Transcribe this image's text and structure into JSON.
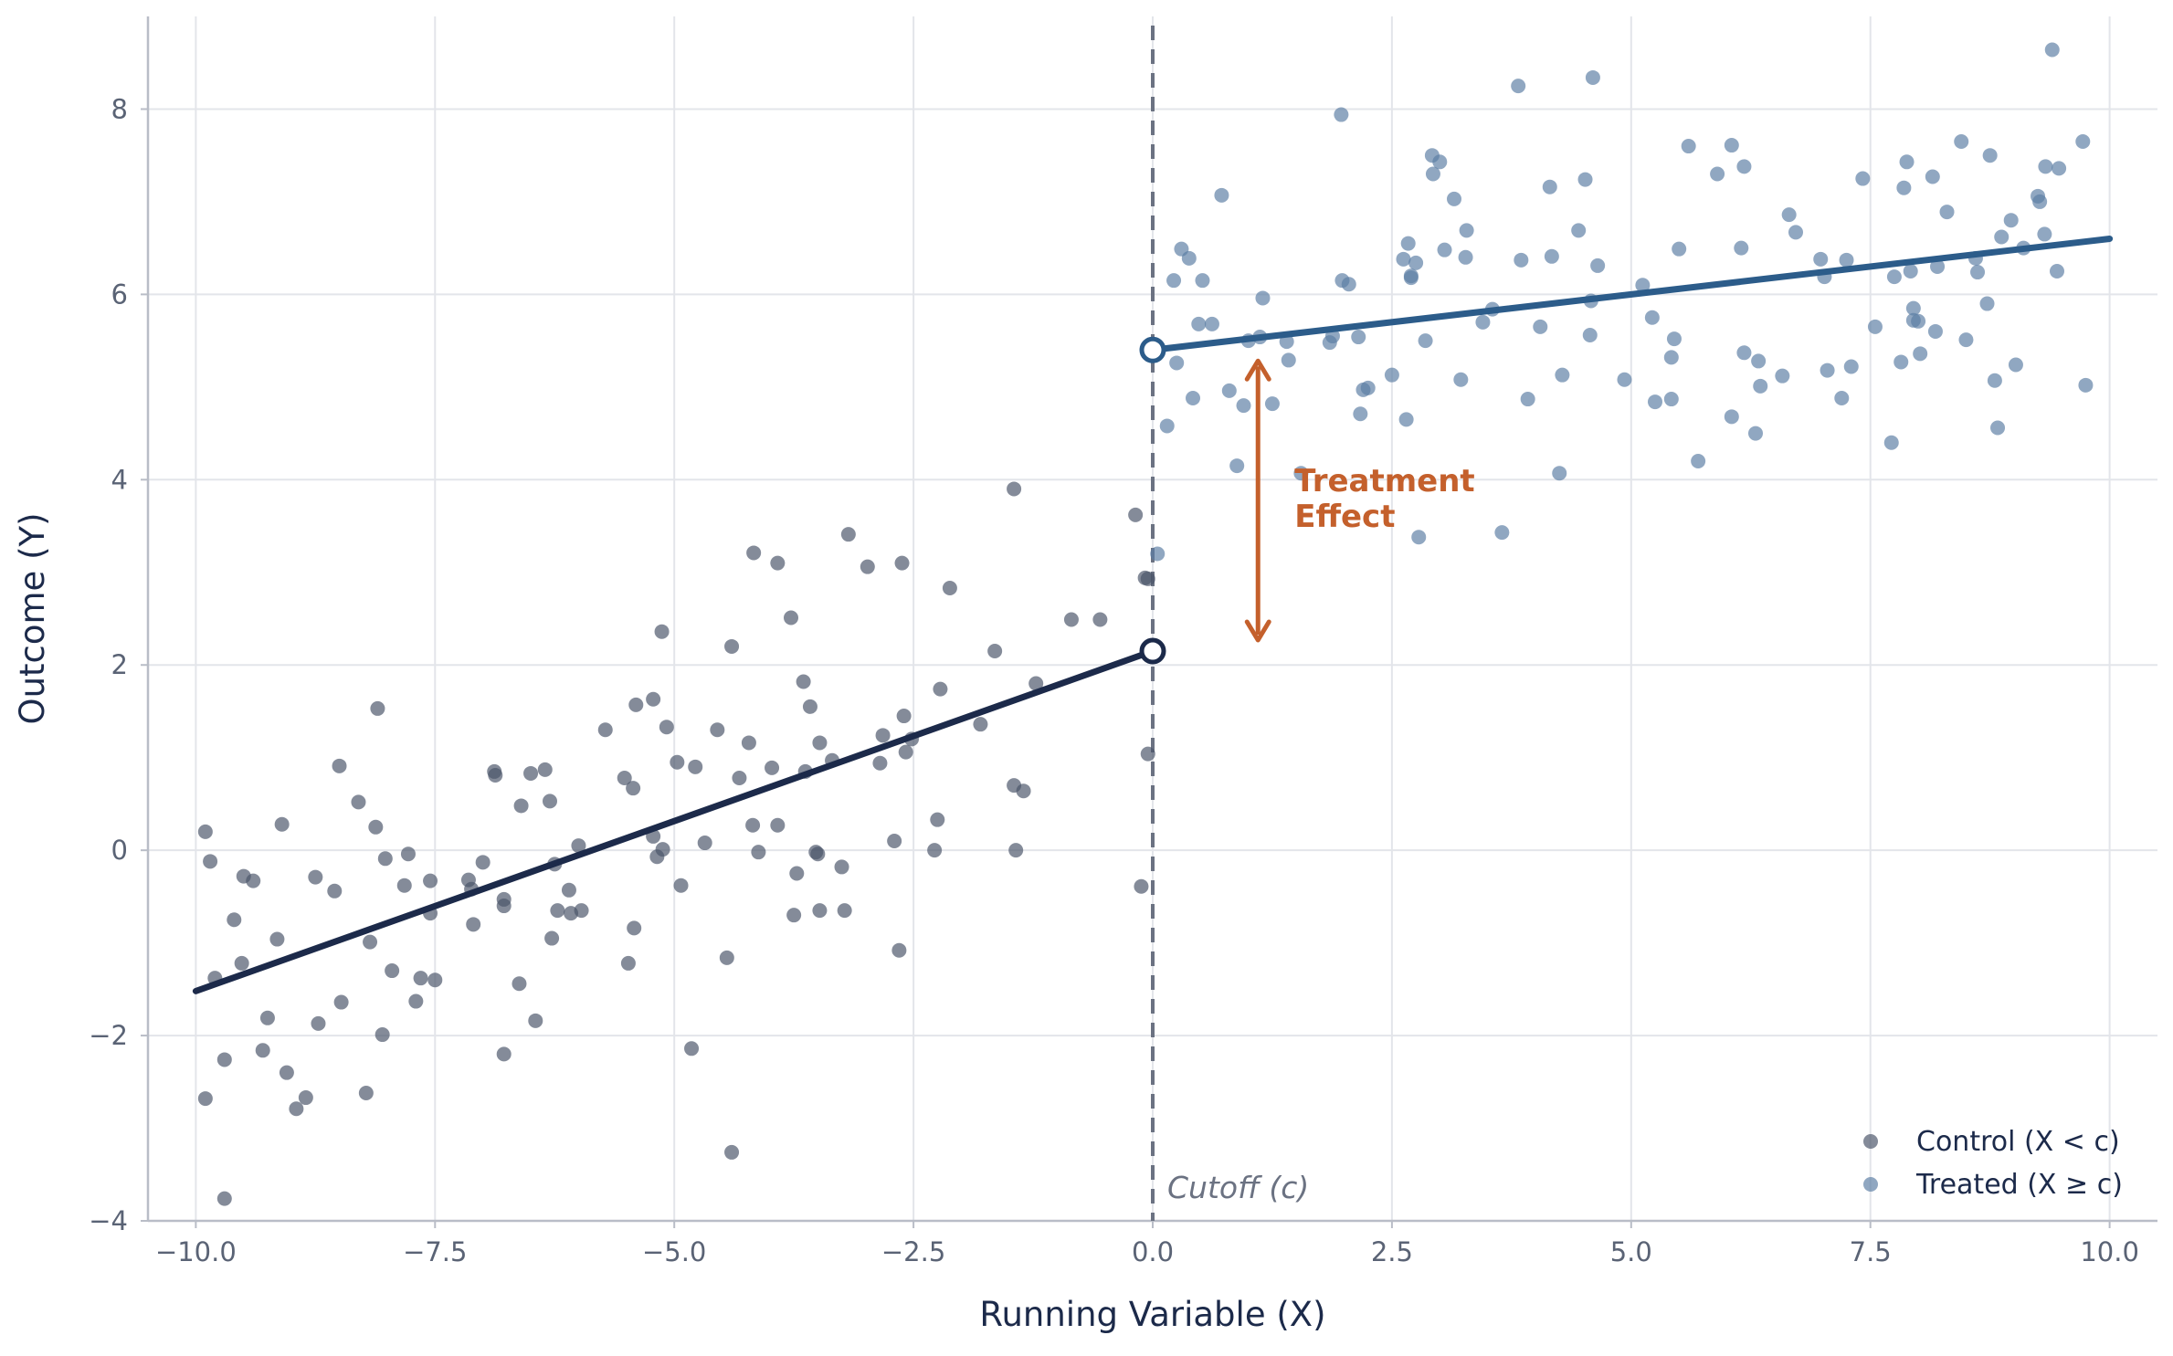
{
  "chart_data": {
    "type": "scatter",
    "title": "",
    "xlabel": "Running Variable (X)",
    "ylabel": "Outcome (Y)",
    "xlim": [
      -10.5,
      10.5
    ],
    "ylim": [
      -4,
      9
    ],
    "xticks": [
      -10,
      -7.5,
      -5,
      -2.5,
      0,
      2.5,
      5,
      7.5,
      10
    ],
    "xtick_labels": [
      "−10.0",
      "−7.5",
      "−5.0",
      "−2.5",
      "0.0",
      "2.5",
      "5.0",
      "7.5",
      "10.0"
    ],
    "yticks": [
      -4,
      -2,
      0,
      2,
      4,
      6,
      8
    ],
    "ytick_labels": [
      "−4",
      "−2",
      "0",
      "2",
      "4",
      "6",
      "8"
    ],
    "grid": true,
    "legend_position": "bottom-right",
    "cutoff": {
      "x": 0,
      "label": "Cutoff (c)"
    },
    "annotation": {
      "label_line1": "Treatment",
      "label_line2": "Effect",
      "x": 1.1,
      "y_from": 2.15,
      "y_to": 5.4,
      "color": "#c4602c"
    },
    "colors": {
      "control_points": "#4a5468",
      "treated_points": "#5b7ea3",
      "control_line": "#1c2a4a",
      "treated_line": "#2c5c8a",
      "cutoff_line": "#6b7282",
      "grid": "#e3e5ea"
    },
    "fit_lines": [
      {
        "name": "Control (X < c)",
        "x": [
          -10,
          0
        ],
        "y": [
          -1.52,
          2.15
        ]
      },
      {
        "name": "Treated (X ≥ c)",
        "x": [
          0,
          10
        ],
        "y": [
          5.4,
          6.6
        ]
      }
    ],
    "series": [
      {
        "name": "Control (X < c)",
        "points": [
          [
            -9.9,
            0.2
          ],
          [
            -9.85,
            -0.12
          ],
          [
            -9.8,
            -1.38
          ],
          [
            -9.9,
            -2.68
          ],
          [
            -9.7,
            -2.26
          ],
          [
            -9.7,
            -3.76
          ],
          [
            -9.6,
            -0.75
          ],
          [
            -9.5,
            -0.28
          ],
          [
            -9.52,
            -1.22
          ],
          [
            -9.4,
            -0.33
          ],
          [
            -9.3,
            -2.16
          ],
          [
            -9.25,
            -1.81
          ],
          [
            -9.15,
            -0.96
          ],
          [
            -9.1,
            0.28
          ],
          [
            -9.05,
            -2.4
          ],
          [
            -8.95,
            -2.79
          ],
          [
            -8.85,
            -2.67
          ],
          [
            -8.75,
            -0.29
          ],
          [
            -8.72,
            -1.87
          ],
          [
            -8.55,
            -0.44
          ],
          [
            -8.5,
            0.91
          ],
          [
            -8.48,
            -1.64
          ],
          [
            -8.3,
            0.52
          ],
          [
            -8.22,
            -2.62
          ],
          [
            -8.18,
            -0.99
          ],
          [
            -8.12,
            0.25
          ],
          [
            -8.1,
            1.53
          ],
          [
            -8.02,
            -0.09
          ],
          [
            -8.05,
            -1.99
          ],
          [
            -7.95,
            -1.3
          ],
          [
            -7.82,
            -0.38
          ],
          [
            -7.78,
            -0.04
          ],
          [
            -7.7,
            -1.63
          ],
          [
            -7.65,
            -1.38
          ],
          [
            -7.55,
            -0.33
          ],
          [
            -7.55,
            -0.68
          ],
          [
            -7.5,
            -1.4
          ],
          [
            -7.15,
            -0.32
          ],
          [
            -7.12,
            -0.42
          ],
          [
            -7.1,
            -0.8
          ],
          [
            -7.0,
            -0.13
          ],
          [
            -6.88,
            0.85
          ],
          [
            -6.87,
            0.81
          ],
          [
            -6.78,
            -0.53
          ],
          [
            -6.78,
            -0.6
          ],
          [
            -6.78,
            -2.2
          ],
          [
            -6.6,
            0.48
          ],
          [
            -6.62,
            -1.44
          ],
          [
            -6.5,
            0.83
          ],
          [
            -6.45,
            -1.84
          ],
          [
            -6.35,
            0.87
          ],
          [
            -6.3,
            0.53
          ],
          [
            -6.28,
            -0.95
          ],
          [
            -6.22,
            -0.65
          ],
          [
            -6.25,
            -0.15
          ],
          [
            -6.1,
            -0.43
          ],
          [
            -6.08,
            -0.68
          ],
          [
            -6.0,
            0.05
          ],
          [
            -5.97,
            -0.65
          ],
          [
            -5.72,
            1.3
          ],
          [
            -5.52,
            0.78
          ],
          [
            -5.48,
            -1.22
          ],
          [
            -5.43,
            0.67
          ],
          [
            -5.4,
            1.57
          ],
          [
            -5.42,
            -0.84
          ],
          [
            -5.22,
            1.63
          ],
          [
            -5.22,
            0.15
          ],
          [
            -5.18,
            -0.07
          ],
          [
            -5.12,
            0.01
          ],
          [
            -5.13,
            2.36
          ],
          [
            -5.08,
            1.33
          ],
          [
            -4.97,
            0.95
          ],
          [
            -4.93,
            -0.38
          ],
          [
            -4.82,
            -2.14
          ],
          [
            -4.78,
            0.9
          ],
          [
            -4.68,
            0.08
          ],
          [
            -4.55,
            1.3
          ],
          [
            -4.45,
            -1.16
          ],
          [
            -4.4,
            2.2
          ],
          [
            -4.4,
            -3.26
          ],
          [
            -4.32,
            0.78
          ],
          [
            -4.22,
            1.16
          ],
          [
            -4.18,
            0.27
          ],
          [
            -4.17,
            3.21
          ],
          [
            -4.12,
            -0.02
          ],
          [
            -3.98,
            0.89
          ],
          [
            -3.92,
            3.1
          ],
          [
            -3.92,
            0.27
          ],
          [
            -3.78,
            2.51
          ],
          [
            -3.75,
            -0.7
          ],
          [
            -3.72,
            -0.25
          ],
          [
            -3.65,
            1.82
          ],
          [
            -3.63,
            0.85
          ],
          [
            -3.58,
            1.55
          ],
          [
            -3.52,
            -0.02
          ],
          [
            -3.5,
            -0.04
          ],
          [
            -3.48,
            1.16
          ],
          [
            -3.48,
            -0.65
          ],
          [
            -3.35,
            0.97
          ],
          [
            -3.25,
            -0.18
          ],
          [
            -3.22,
            -0.65
          ],
          [
            -3.18,
            3.41
          ],
          [
            -2.98,
            3.06
          ],
          [
            -2.85,
            0.94
          ],
          [
            -2.82,
            1.24
          ],
          [
            -2.7,
            0.1
          ],
          [
            -2.65,
            -1.08
          ],
          [
            -2.62,
            3.1
          ],
          [
            -2.6,
            1.45
          ],
          [
            -2.58,
            1.06
          ],
          [
            -2.52,
            1.2
          ],
          [
            -2.28,
            0.0
          ],
          [
            -2.25,
            0.33
          ],
          [
            -2.22,
            1.74
          ],
          [
            -2.12,
            2.83
          ],
          [
            -1.8,
            1.36
          ],
          [
            -1.65,
            2.15
          ],
          [
            -1.45,
            3.9
          ],
          [
            -1.45,
            0.7
          ],
          [
            -1.43,
            0.0
          ],
          [
            -1.35,
            0.64
          ],
          [
            -1.22,
            1.8
          ],
          [
            -0.85,
            2.49
          ],
          [
            -0.55,
            2.49
          ],
          [
            -0.18,
            3.62
          ],
          [
            -0.12,
            -0.39
          ],
          [
            -0.08,
            2.94
          ],
          [
            -0.05,
            2.93
          ],
          [
            -0.05,
            1.04
          ]
        ]
      },
      {
        "name": "Treated (X ≥ c)",
        "points": [
          [
            0.05,
            3.2
          ],
          [
            0.15,
            4.58
          ],
          [
            0.22,
            6.15
          ],
          [
            0.25,
            5.26
          ],
          [
            0.3,
            6.49
          ],
          [
            0.38,
            6.39
          ],
          [
            0.42,
            4.88
          ],
          [
            0.48,
            5.68
          ],
          [
            0.52,
            6.15
          ],
          [
            0.62,
            5.68
          ],
          [
            0.72,
            7.07
          ],
          [
            0.8,
            4.96
          ],
          [
            0.88,
            4.15
          ],
          [
            0.95,
            4.8
          ],
          [
            1.0,
            5.5
          ],
          [
            1.12,
            5.54
          ],
          [
            1.15,
            5.96
          ],
          [
            1.25,
            4.82
          ],
          [
            1.42,
            5.29
          ],
          [
            1.4,
            5.49
          ],
          [
            1.55,
            4.07
          ],
          [
            1.85,
            5.48
          ],
          [
            1.88,
            5.55
          ],
          [
            1.97,
            7.94
          ],
          [
            1.98,
            6.15
          ],
          [
            2.05,
            6.11
          ],
          [
            2.15,
            5.54
          ],
          [
            2.17,
            4.71
          ],
          [
            2.2,
            4.97
          ],
          [
            2.25,
            4.99
          ],
          [
            2.5,
            5.13
          ],
          [
            2.62,
            6.38
          ],
          [
            2.65,
            4.65
          ],
          [
            2.67,
            6.55
          ],
          [
            2.7,
            6.18
          ],
          [
            2.7,
            6.2
          ],
          [
            2.75,
            6.34
          ],
          [
            2.78,
            3.38
          ],
          [
            2.85,
            5.5
          ],
          [
            2.92,
            7.5
          ],
          [
            2.93,
            7.3
          ],
          [
            3.0,
            7.43
          ],
          [
            3.05,
            6.48
          ],
          [
            3.15,
            7.03
          ],
          [
            3.22,
            5.08
          ],
          [
            3.28,
            6.69
          ],
          [
            3.27,
            6.4
          ],
          [
            3.45,
            5.7
          ],
          [
            3.55,
            5.84
          ],
          [
            3.65,
            3.43
          ],
          [
            3.82,
            8.25
          ],
          [
            3.85,
            6.37
          ],
          [
            3.92,
            4.87
          ],
          [
            4.05,
            5.65
          ],
          [
            4.15,
            7.16
          ],
          [
            4.17,
            6.41
          ],
          [
            4.25,
            4.07
          ],
          [
            4.28,
            5.13
          ],
          [
            4.45,
            6.69
          ],
          [
            4.52,
            7.24
          ],
          [
            4.57,
            5.56
          ],
          [
            4.58,
            5.93
          ],
          [
            4.6,
            8.34
          ],
          [
            4.65,
            6.31
          ],
          [
            4.93,
            5.08
          ],
          [
            5.12,
            6.1
          ],
          [
            5.22,
            5.75
          ],
          [
            5.25,
            4.84
          ],
          [
            5.42,
            4.87
          ],
          [
            5.42,
            5.32
          ],
          [
            5.45,
            5.52
          ],
          [
            5.5,
            6.49
          ],
          [
            5.6,
            7.6
          ],
          [
            5.7,
            4.2
          ],
          [
            5.9,
            7.3
          ],
          [
            6.05,
            7.61
          ],
          [
            6.05,
            4.68
          ],
          [
            6.15,
            6.5
          ],
          [
            6.18,
            7.38
          ],
          [
            6.18,
            5.37
          ],
          [
            6.3,
            4.5
          ],
          [
            6.33,
            5.28
          ],
          [
            6.35,
            5.01
          ],
          [
            6.58,
            5.12
          ],
          [
            6.65,
            6.86
          ],
          [
            6.72,
            6.67
          ],
          [
            6.98,
            6.38
          ],
          [
            7.02,
            6.19
          ],
          [
            7.05,
            5.18
          ],
          [
            7.2,
            4.88
          ],
          [
            7.25,
            6.37
          ],
          [
            7.3,
            5.22
          ],
          [
            7.42,
            7.25
          ],
          [
            7.55,
            5.65
          ],
          [
            7.72,
            4.4
          ],
          [
            7.75,
            6.19
          ],
          [
            7.82,
            5.27
          ],
          [
            7.85,
            7.15
          ],
          [
            7.88,
            7.43
          ],
          [
            7.92,
            6.25
          ],
          [
            7.95,
            5.85
          ],
          [
            7.95,
            5.72
          ],
          [
            8.0,
            5.71
          ],
          [
            8.02,
            5.36
          ],
          [
            8.15,
            7.27
          ],
          [
            8.18,
            5.6
          ],
          [
            8.2,
            6.3
          ],
          [
            8.3,
            6.89
          ],
          [
            8.45,
            7.65
          ],
          [
            8.5,
            5.51
          ],
          [
            8.6,
            6.39
          ],
          [
            8.62,
            6.24
          ],
          [
            8.72,
            5.9
          ],
          [
            8.75,
            7.5
          ],
          [
            8.8,
            5.07
          ],
          [
            8.83,
            4.56
          ],
          [
            8.87,
            6.62
          ],
          [
            8.97,
            6.8
          ],
          [
            9.02,
            5.24
          ],
          [
            9.1,
            6.5
          ],
          [
            9.25,
            7.06
          ],
          [
            9.27,
            7.0
          ],
          [
            9.32,
            6.65
          ],
          [
            9.33,
            7.38
          ],
          [
            9.4,
            8.64
          ],
          [
            9.45,
            6.25
          ],
          [
            9.47,
            7.36
          ],
          [
            9.72,
            7.65
          ],
          [
            9.75,
            5.02
          ]
        ]
      }
    ]
  }
}
